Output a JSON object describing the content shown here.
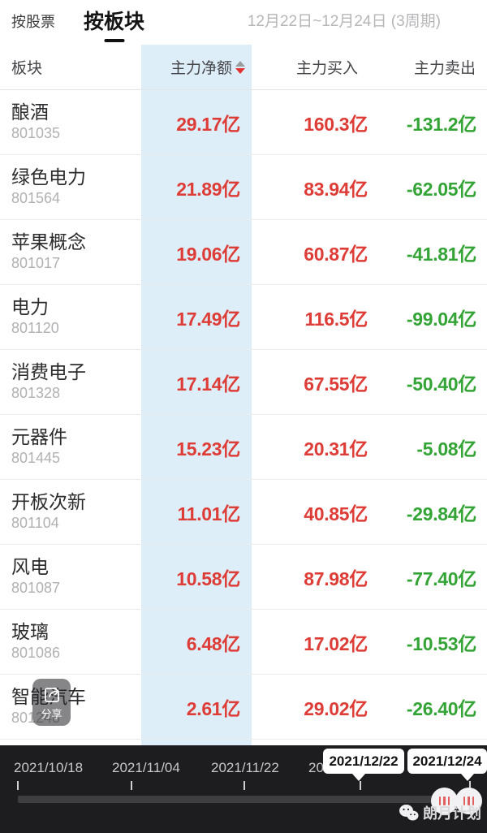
{
  "topbar": {
    "tab_by_stock": "按股票",
    "tab_by_sector": "按板块",
    "period": "12月22日~12月24日 (3周期)"
  },
  "table": {
    "headers": {
      "sector": "板块",
      "net": "主力净额",
      "buy": "主力买入",
      "sell": "主力卖出"
    },
    "rows": [
      {
        "name": "酿酒",
        "code": "801035",
        "net": "29.17亿",
        "buy": "160.3亿",
        "sell": "-131.2亿"
      },
      {
        "name": "绿色电力",
        "code": "801564",
        "net": "21.89亿",
        "buy": "83.94亿",
        "sell": "-62.05亿"
      },
      {
        "name": "苹果概念",
        "code": "801017",
        "net": "19.06亿",
        "buy": "60.87亿",
        "sell": "-41.81亿"
      },
      {
        "name": "电力",
        "code": "801120",
        "net": "17.49亿",
        "buy": "116.5亿",
        "sell": "-99.04亿"
      },
      {
        "name": "消费电子",
        "code": "801328",
        "net": "17.14亿",
        "buy": "67.55亿",
        "sell": "-50.40亿"
      },
      {
        "name": "元器件",
        "code": "801445",
        "net": "15.23亿",
        "buy": "20.31亿",
        "sell": "-5.08亿"
      },
      {
        "name": "开板次新",
        "code": "801104",
        "net": "11.01亿",
        "buy": "40.85亿",
        "sell": "-29.84亿"
      },
      {
        "name": "风电",
        "code": "801087",
        "net": "10.58亿",
        "buy": "87.98亿",
        "sell": "-77.40亿"
      },
      {
        "name": "玻璃",
        "code": "801086",
        "net": "6.48亿",
        "buy": "17.02亿",
        "sell": "-10.53亿"
      },
      {
        "name": "智能汽车",
        "code": "801248",
        "net": "2.61亿",
        "buy": "29.02亿",
        "sell": "-26.40亿"
      }
    ]
  },
  "share": {
    "label": "分享"
  },
  "timeline": {
    "labels": [
      "2021/10/18",
      "2021/11/04",
      "2021/11/22",
      "20"
    ],
    "tooltips": [
      "2021/12/22",
      "2021/12/24"
    ],
    "watermark": "朗月计划"
  },
  "colors": {
    "up_red": "#de3c36",
    "down_green": "#33a435",
    "column_highlight": "#ddeef9",
    "sort_arrow_red": "#e23333",
    "bottom_bar": "#1d1d1f"
  }
}
